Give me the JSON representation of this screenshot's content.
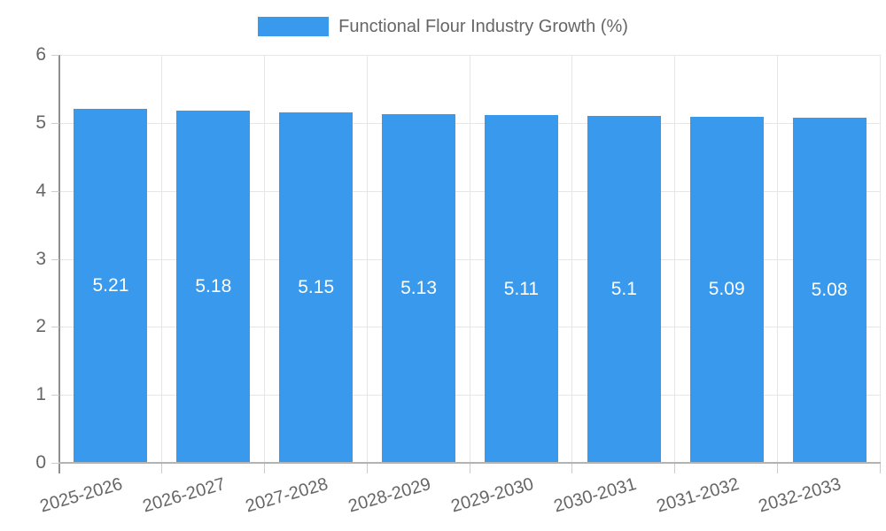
{
  "legend": {
    "label": "Functional Flour Industry Growth (%)",
    "position": "top"
  },
  "chart_data": {
    "type": "bar",
    "title": "Functional Flour Industry Growth (%)",
    "categories": [
      "2025-2026",
      "2026-2027",
      "2027-2028",
      "2028-2029",
      "2029-2030",
      "2030-2031",
      "2031-2032",
      "2032-2033"
    ],
    "values": [
      5.21,
      5.18,
      5.15,
      5.13,
      5.11,
      5.1,
      5.09,
      5.08
    ],
    "value_labels": [
      "5.21",
      "5.18",
      "5.15",
      "5.13",
      "5.11",
      "5.1",
      "5.09",
      "5.08"
    ],
    "xlabel": "",
    "ylabel": "",
    "ylim": [
      0,
      6
    ],
    "yticks": [
      0,
      1,
      2,
      3,
      4,
      5,
      6
    ],
    "ytick_labels": [
      "0",
      "1",
      "2",
      "3",
      "4",
      "5",
      "6"
    ],
    "grid": true,
    "legend_position": "top",
    "series": [
      {
        "name": "Functional Flour Industry Growth (%)",
        "values": [
          5.21,
          5.18,
          5.15,
          5.13,
          5.11,
          5.1,
          5.09,
          5.08
        ]
      }
    ]
  },
  "colors": {
    "bar_blue": "#3999ec",
    "axis_text": "#666666",
    "grid_line": "#e6e6e6",
    "tick_line": "#cccccc",
    "y_axis_line": "#8f8f8f",
    "x_axis_line": "#b3b3b3",
    "value_text": "#ffffff",
    "background": "#ffffff"
  }
}
